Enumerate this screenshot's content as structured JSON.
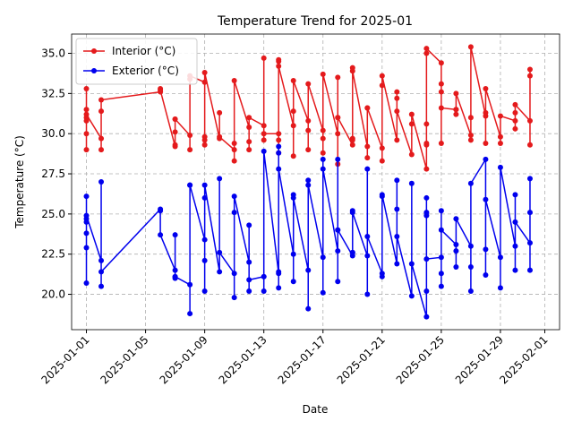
{
  "chart_data": {
    "type": "line",
    "title": "Temperature Trend for 2025-01",
    "xlabel": "Date",
    "ylabel": "Temperature (°C)",
    "x": [
      "2025-01-01",
      "2025-01-01",
      "2025-01-01",
      "2025-01-01",
      "2025-01-01",
      "2025-01-01",
      "2025-01-01",
      "2025-01-02",
      "2025-01-02",
      "2025-01-02",
      "2025-01-02",
      "2025-01-06",
      "2025-01-06",
      "2025-01-06",
      "2025-01-07",
      "2025-01-07",
      "2025-01-07",
      "2025-01-07",
      "2025-01-07",
      "2025-01-08",
      "2025-01-08",
      "2025-01-08",
      "2025-01-08",
      "2025-01-09",
      "2025-01-09",
      "2025-01-09",
      "2025-01-09",
      "2025-01-09",
      "2025-01-10",
      "2025-01-10",
      "2025-01-10",
      "2025-01-11",
      "2025-01-11",
      "2025-01-11",
      "2025-01-11",
      "2025-01-12",
      "2025-01-12",
      "2025-01-12",
      "2025-01-12",
      "2025-01-13",
      "2025-01-13",
      "2025-01-13",
      "2025-01-13",
      "2025-01-14",
      "2025-01-14",
      "2025-01-14",
      "2025-01-14",
      "2025-01-14",
      "2025-01-14",
      "2025-01-15",
      "2025-01-15",
      "2025-01-15",
      "2025-01-15",
      "2025-01-16",
      "2025-01-16",
      "2025-01-16",
      "2025-01-16",
      "2025-01-17",
      "2025-01-17",
      "2025-01-17",
      "2025-01-17",
      "2025-01-18",
      "2025-01-18",
      "2025-01-18",
      "2025-01-18",
      "2025-01-18",
      "2025-01-19",
      "2025-01-19",
      "2025-01-19",
      "2025-01-19",
      "2025-01-19",
      "2025-01-20",
      "2025-01-20",
      "2025-01-20",
      "2025-01-20",
      "2025-01-21",
      "2025-01-21",
      "2025-01-21",
      "2025-01-21",
      "2025-01-22",
      "2025-01-22",
      "2025-01-22",
      "2025-01-22",
      "2025-01-23",
      "2025-01-23",
      "2025-01-23",
      "2025-01-24",
      "2025-01-24",
      "2025-01-24",
      "2025-01-24",
      "2025-01-24",
      "2025-01-24",
      "2025-01-25",
      "2025-01-25",
      "2025-01-25",
      "2025-01-25",
      "2025-01-25",
      "2025-01-26",
      "2025-01-26",
      "2025-01-26",
      "2025-01-26",
      "2025-01-27",
      "2025-01-27",
      "2025-01-27",
      "2025-01-27",
      "2025-01-28",
      "2025-01-28",
      "2025-01-28",
      "2025-01-28",
      "2025-01-29",
      "2025-01-29",
      "2025-01-29",
      "2025-01-30",
      "2025-01-30",
      "2025-01-30",
      "2025-01-30",
      "2025-01-31",
      "2025-01-31",
      "2025-01-31",
      "2025-01-31"
    ],
    "series": [
      {
        "name": "Interior (°C)",
        "color": "#e41a1c",
        "values": [
          32.8,
          31.0,
          29.0,
          31.5,
          30.0,
          30.8,
          31.2,
          29.7,
          29.0,
          31.4,
          32.1,
          32.6,
          32.8,
          32.7,
          29.2,
          29.3,
          30.1,
          30.9,
          30.9,
          29.9,
          29.0,
          33.4,
          33.6,
          33.2,
          29.8,
          29.3,
          29.6,
          33.8,
          29.7,
          31.3,
          29.8,
          29.0,
          28.3,
          29.4,
          33.3,
          30.4,
          29.0,
          29.5,
          31.0,
          30.5,
          29.6,
          34.7,
          30.0,
          30.0,
          29.6,
          28.8,
          34.5,
          34.6,
          34.2,
          30.5,
          28.6,
          31.4,
          33.3,
          30.8,
          29.0,
          30.2,
          33.1,
          30.2,
          28.8,
          29.7,
          33.7,
          30.0,
          28.1,
          33.5,
          31.0,
          31.0,
          29.3,
          29.7,
          29.6,
          34.1,
          33.9,
          29.2,
          28.5,
          31.6,
          31.6,
          29.1,
          28.3,
          33.0,
          33.6,
          29.6,
          32.2,
          32.6,
          31.4,
          28.7,
          30.6,
          31.2,
          27.8,
          29.3,
          29.4,
          30.6,
          35.0,
          35.3,
          34.4,
          29.4,
          33.1,
          32.6,
          31.6,
          31.5,
          31.2,
          31.5,
          32.5,
          29.9,
          29.6,
          31.0,
          35.4,
          31.1,
          29.4,
          31.3,
          32.8,
          29.8,
          29.4,
          31.1,
          30.8,
          30.3,
          31.3,
          31.8,
          30.8,
          29.3,
          34.0,
          33.6
        ]
      },
      {
        "name": "Exterior (°C)",
        "color": "#0000ee",
        "values": [
          26.1,
          22.9,
          20.7,
          23.8,
          24.5,
          24.7,
          24.9,
          22.1,
          20.5,
          27.0,
          21.4,
          25.3,
          25.2,
          23.7,
          21.5,
          21.0,
          23.7,
          21.1,
          21.1,
          20.6,
          18.8,
          26.8,
          26.8,
          23.4,
          22.1,
          20.2,
          26.0,
          26.8,
          21.4,
          27.2,
          22.6,
          21.3,
          19.8,
          25.1,
          26.1,
          22.0,
          20.2,
          24.3,
          20.9,
          21.1,
          21.1,
          20.2,
          28.9,
          21.3,
          21.4,
          20.4,
          29.2,
          28.8,
          27.8,
          22.5,
          20.8,
          26.2,
          26.0,
          21.5,
          19.1,
          27.1,
          26.8,
          22.3,
          20.1,
          28.4,
          27.8,
          22.7,
          20.8,
          28.4,
          24.0,
          24.0,
          22.4,
          22.6,
          22.6,
          25.2,
          25.1,
          22.4,
          20.0,
          27.8,
          23.6,
          21.3,
          21.1,
          26.1,
          26.2,
          21.9,
          25.3,
          27.1,
          23.6,
          19.9,
          26.9,
          21.9,
          18.6,
          20.2,
          24.9,
          25.1,
          26.0,
          22.2,
          22.3,
          21.3,
          20.5,
          25.2,
          24.0,
          23.1,
          22.7,
          21.7,
          24.7,
          23.0,
          21.7,
          20.2,
          26.9,
          28.4,
          22.8,
          21.2,
          25.9,
          22.3,
          20.4,
          27.9,
          23.0,
          21.5,
          26.2,
          24.5,
          23.2,
          21.5,
          27.2,
          25.1
        ]
      }
    ],
    "xlim": [
      "2024-12-31",
      "2025-02-02"
    ],
    "xticks": [
      "2025-01-01",
      "2025-01-05",
      "2025-01-09",
      "2025-01-13",
      "2025-01-17",
      "2025-01-21",
      "2025-01-25",
      "2025-01-29",
      "2025-02-01"
    ],
    "ylim": [
      17.8,
      36.2
    ],
    "yticks": [
      {
        "value": 20,
        "label": "20.0"
      },
      22.5,
      {
        "value": 25,
        "label": "25.0"
      },
      27.5,
      {
        "value": 30,
        "label": "30.0"
      },
      32.5,
      {
        "value": 35,
        "label": "35.0"
      }
    ],
    "grid": true,
    "legend": "upper left"
  }
}
